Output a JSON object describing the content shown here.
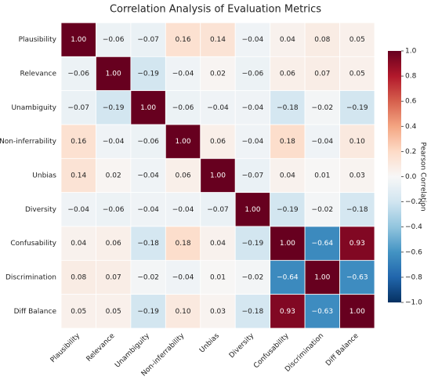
{
  "chart_data": {
    "type": "heatmap",
    "title": "Correlation Analysis of Evaluation Metrics",
    "categories": [
      "Plausibility",
      "Relevance",
      "Unambiguity",
      "Non-inferrability",
      "Unbias",
      "Diversity",
      "Confusability",
      "Discrimination",
      "Diff Balance"
    ],
    "values": [
      [
        1.0,
        -0.06,
        -0.07,
        0.16,
        0.14,
        -0.04,
        0.04,
        0.08,
        0.05
      ],
      [
        -0.06,
        1.0,
        -0.19,
        -0.04,
        0.02,
        -0.06,
        0.06,
        0.07,
        0.05
      ],
      [
        -0.07,
        -0.19,
        1.0,
        -0.06,
        -0.04,
        -0.04,
        -0.18,
        -0.02,
        -0.19
      ],
      [
        0.16,
        -0.04,
        -0.06,
        1.0,
        0.06,
        -0.04,
        0.18,
        -0.04,
        0.1
      ],
      [
        0.14,
        0.02,
        -0.04,
        0.06,
        1.0,
        -0.07,
        0.04,
        0.01,
        0.03
      ],
      [
        -0.04,
        -0.06,
        -0.04,
        -0.04,
        -0.07,
        1.0,
        -0.19,
        -0.02,
        -0.18
      ],
      [
        0.04,
        0.06,
        -0.18,
        0.18,
        0.04,
        -0.19,
        1.0,
        -0.64,
        0.93
      ],
      [
        0.08,
        0.07,
        -0.02,
        -0.04,
        0.01,
        -0.02,
        -0.64,
        1.0,
        -0.63
      ],
      [
        0.05,
        0.05,
        -0.19,
        0.1,
        0.03,
        -0.18,
        0.93,
        -0.63,
        1.0
      ]
    ],
    "value_labels": [
      [
        "1.00",
        "−0.06",
        "−0.07",
        "0.16",
        "0.14",
        "−0.04",
        "0.04",
        "0.08",
        "0.05"
      ],
      [
        "−0.06",
        "1.00",
        "−0.19",
        "−0.04",
        "0.02",
        "−0.06",
        "0.06",
        "0.07",
        "0.05"
      ],
      [
        "−0.07",
        "−0.19",
        "1.00",
        "−0.06",
        "−0.04",
        "−0.04",
        "−0.18",
        "−0.02",
        "−0.19"
      ],
      [
        "0.16",
        "−0.04",
        "−0.06",
        "1.00",
        "0.06",
        "−0.04",
        "0.18",
        "−0.04",
        "0.10"
      ],
      [
        "0.14",
        "0.02",
        "−0.04",
        "0.06",
        "1.00",
        "−0.07",
        "0.04",
        "0.01",
        "0.03"
      ],
      [
        "−0.04",
        "−0.06",
        "−0.04",
        "−0.04",
        "−0.07",
        "1.00",
        "−0.19",
        "−0.02",
        "−0.18"
      ],
      [
        "0.04",
        "0.06",
        "−0.18",
        "0.18",
        "0.04",
        "−0.19",
        "1.00",
        "−0.64",
        "0.93"
      ],
      [
        "0.08",
        "0.07",
        "−0.02",
        "−0.04",
        "0.01",
        "−0.02",
        "−0.64",
        "1.00",
        "−0.63"
      ],
      [
        "0.05",
        "0.05",
        "−0.19",
        "0.10",
        "0.03",
        "−0.18",
        "0.93",
        "−0.63",
        "1.00"
      ]
    ],
    "colormap": "RdBu_r",
    "clim": [
      -1,
      1
    ],
    "colorbar_label": "Pearson Correlation",
    "colorbar_ticks": [
      {
        "value": 1,
        "label": "1.0"
      },
      {
        "value": 0.8,
        "label": "0.8"
      },
      {
        "value": 0.6,
        "label": "0.6"
      },
      {
        "value": 0.4,
        "label": "0.4"
      },
      {
        "value": 0.2,
        "label": "0.2"
      },
      {
        "value": 0,
        "label": "0.0"
      },
      {
        "value": -0.2,
        "label": "−0.2"
      },
      {
        "value": -0.4,
        "label": "−0.4"
      },
      {
        "value": -0.6,
        "label": "−0.6"
      },
      {
        "value": -0.8,
        "label": "−0.8"
      },
      {
        "value": -1,
        "label": "−1.0"
      }
    ]
  }
}
